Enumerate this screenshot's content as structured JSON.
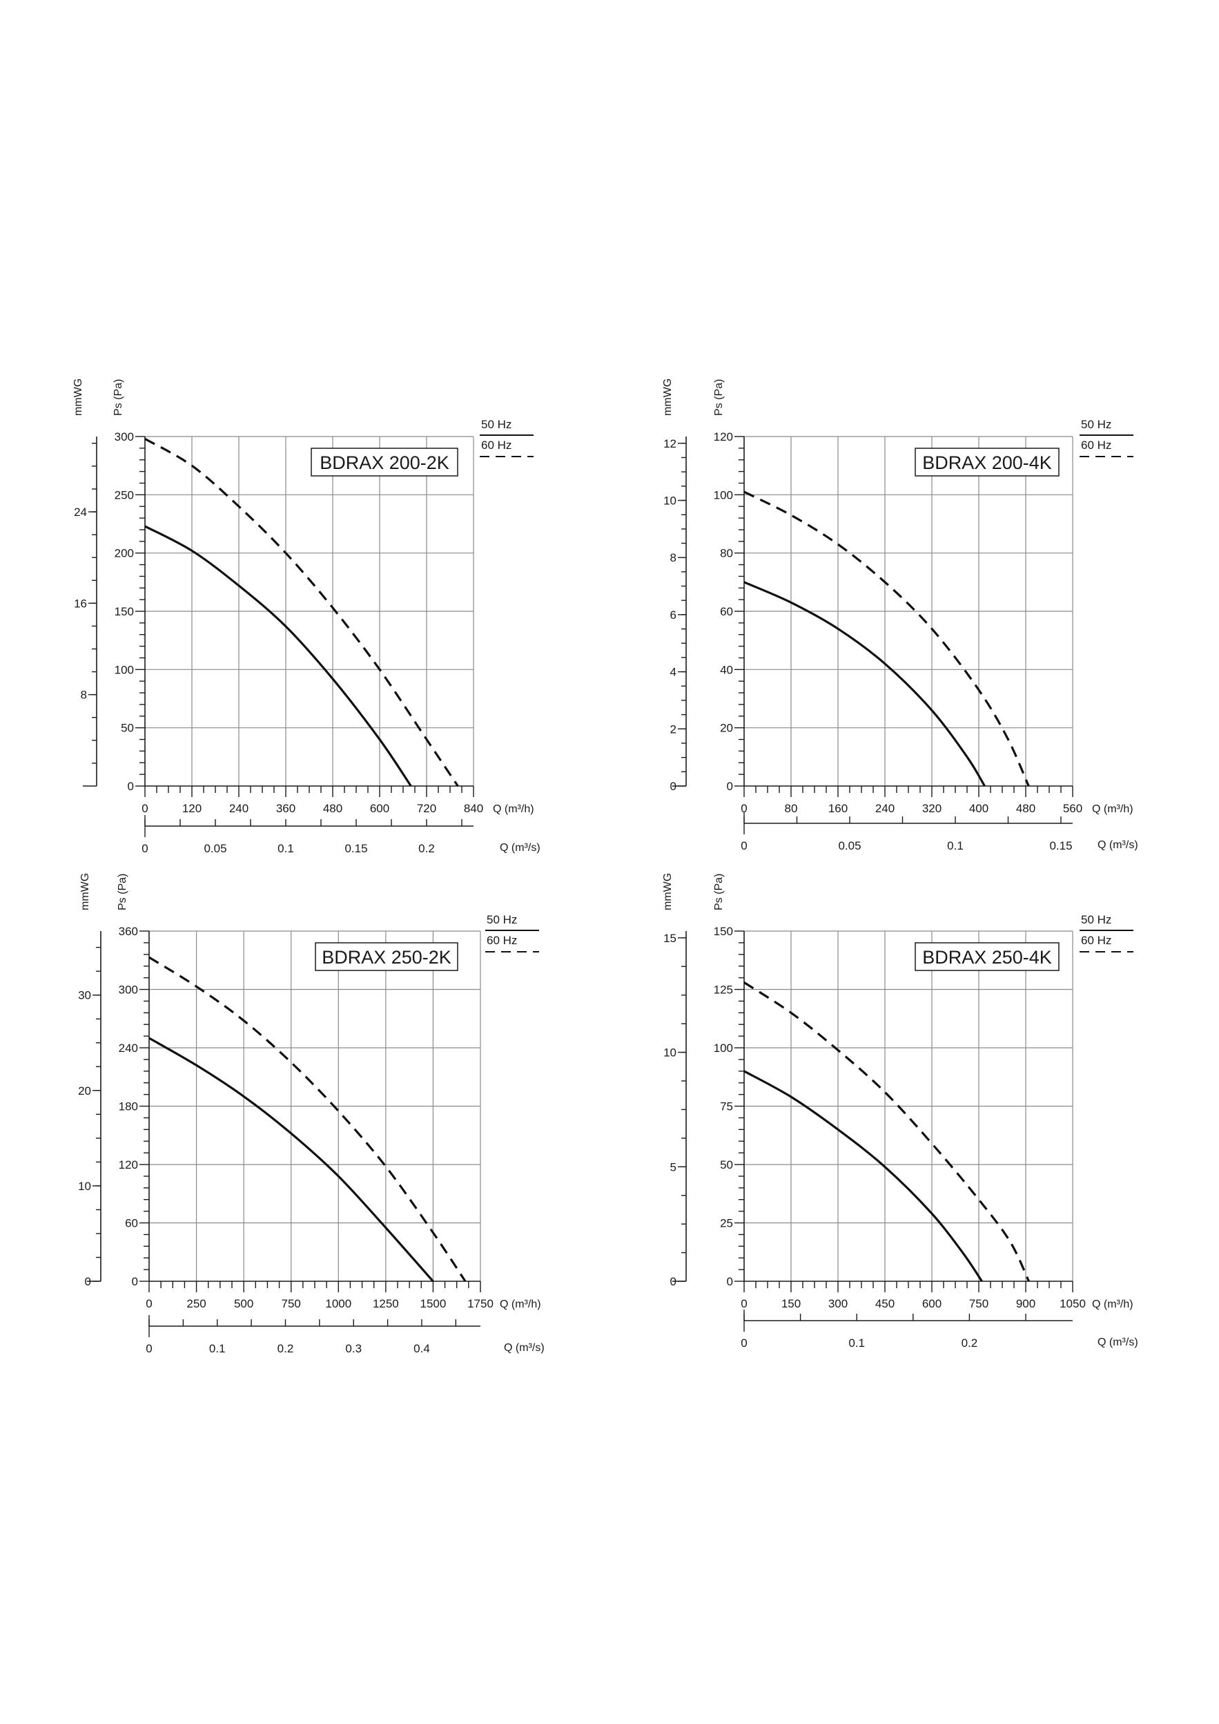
{
  "chart_data": [
    {
      "type": "line",
      "model_label": "BDRAX  200-2K",
      "legend": [
        "50 Hz",
        "60 Hz"
      ],
      "y1_title": "mmWG",
      "y2_title": "Ps (Pa)",
      "x_title": "Q (m³/h)",
      "x2_title": "Q (m³/s)",
      "xlim": [
        0,
        840
      ],
      "ylim": [
        0,
        300
      ],
      "x_ticks": [
        "0",
        "120",
        "240",
        "360",
        "480",
        "600",
        "720",
        "840"
      ],
      "y_ticks": [
        "0",
        "50",
        "100",
        "150",
        "200",
        "250",
        "300"
      ],
      "mm_ticks": [
        {
          "label": "8",
          "value": 8
        },
        {
          "label": "16",
          "value": 16
        },
        {
          "label": "24",
          "value": 24
        }
      ],
      "x2_ticks": [
        {
          "label": "0",
          "value": 0
        },
        {
          "label": "0.05",
          "value": 0.05
        },
        {
          "label": "0.1",
          "value": 0.1
        },
        {
          "label": "0.15",
          "value": 0.15
        },
        {
          "label": "0.2",
          "value": 0.2
        }
      ],
      "series": [
        {
          "name": "50 Hz",
          "x": [
            0,
            120,
            240,
            360,
            480,
            600,
            680
          ],
          "y": [
            223,
            202,
            172,
            137,
            92,
            40,
            0
          ]
        },
        {
          "name": "60 Hz",
          "x": [
            0,
            120,
            240,
            360,
            480,
            600,
            720,
            800
          ],
          "y": [
            298,
            275,
            240,
            200,
            153,
            100,
            40,
            0
          ]
        }
      ]
    },
    {
      "type": "line",
      "model_label": "BDRAX 200-4K",
      "legend": [
        "50 Hz",
        "60 Hz"
      ],
      "y1_title": "mmWG",
      "y2_title": "Ps (Pa)",
      "x_title": "Q (m³/h)",
      "x2_title": "Q (m³/s)",
      "xlim": [
        0,
        560
      ],
      "ylim": [
        0,
        120
      ],
      "x_ticks": [
        "0",
        "80",
        "160",
        "240",
        "320",
        "400",
        "480",
        "560"
      ],
      "y_ticks": [
        "0",
        "20",
        "40",
        "60",
        "80",
        "100",
        "120"
      ],
      "mm_ticks": [
        {
          "label": "0",
          "value": 0
        },
        {
          "label": "2",
          "value": 2
        },
        {
          "label": "4",
          "value": 4
        },
        {
          "label": "6",
          "value": 6
        },
        {
          "label": "8",
          "value": 8
        },
        {
          "label": "10",
          "value": 10
        },
        {
          "label": "12",
          "value": 12
        }
      ],
      "x2_ticks": [
        {
          "label": "0",
          "value": 0
        },
        {
          "label": "0.05",
          "value": 0.05
        },
        {
          "label": "0.1",
          "value": 0.1
        },
        {
          "label": "0.15",
          "value": 0.15
        }
      ],
      "series": [
        {
          "name": "50 Hz",
          "x": [
            0,
            80,
            160,
            240,
            320,
            380,
            410
          ],
          "y": [
            70,
            63,
            54,
            42,
            26,
            10,
            0
          ]
        },
        {
          "name": "60 Hz",
          "x": [
            0,
            80,
            160,
            240,
            320,
            400,
            450,
            485
          ],
          "y": [
            101,
            93,
            83,
            70,
            54,
            33,
            16,
            0
          ]
        }
      ]
    },
    {
      "type": "line",
      "model_label": "BDRAX 250-2K",
      "legend": [
        "50 Hz",
        "60 Hz"
      ],
      "y1_title": "mmWG",
      "y2_title": "Ps (Pa)",
      "x_title": "Q (m³/h)",
      "x2_title": "Q (m³/s)",
      "xlim": [
        0,
        1750
      ],
      "ylim": [
        0,
        360
      ],
      "x_ticks": [
        "0",
        "250",
        "500",
        "750",
        "1000",
        "1250",
        "1500",
        "1750"
      ],
      "y_ticks": [
        "0",
        "60",
        "120",
        "180",
        "240",
        "300",
        "360"
      ],
      "mm_ticks": [
        {
          "label": "0",
          "value": 0
        },
        {
          "label": "10",
          "value": 10
        },
        {
          "label": "20",
          "value": 20
        },
        {
          "label": "30",
          "value": 30
        }
      ],
      "x2_ticks": [
        {
          "label": "0",
          "value": 0
        },
        {
          "label": "0.1",
          "value": 0.1
        },
        {
          "label": "0.2",
          "value": 0.2
        },
        {
          "label": "0.3",
          "value": 0.3
        },
        {
          "label": "0.4",
          "value": 0.4
        }
      ],
      "series": [
        {
          "name": "50 Hz",
          "x": [
            0,
            250,
            500,
            750,
            1000,
            1250,
            1500
          ],
          "y": [
            250,
            222,
            190,
            152,
            108,
            55,
            0
          ]
        },
        {
          "name": "60 Hz",
          "x": [
            0,
            250,
            500,
            750,
            1000,
            1250,
            1500,
            1670
          ],
          "y": [
            333,
            303,
            268,
            225,
            175,
            118,
            50,
            0
          ]
        }
      ]
    },
    {
      "type": "line",
      "model_label": "BDRAX 250-4K",
      "legend": [
        "50 Hz",
        "60 Hz"
      ],
      "y1_title": "mmWG",
      "y2_title": "Ps (Pa)",
      "x_title": "Q (m³/h)",
      "x2_title": "Q (m³/s)",
      "xlim": [
        0,
        1050
      ],
      "ylim": [
        0,
        150
      ],
      "x_ticks": [
        "0",
        "150",
        "300",
        "450",
        "600",
        "750",
        "900",
        "1050"
      ],
      "y_ticks": [
        "0",
        "25",
        "50",
        "75",
        "100",
        "125",
        "150"
      ],
      "mm_ticks": [
        {
          "label": "0",
          "value": 0
        },
        {
          "label": "5",
          "value": 5
        },
        {
          "label": "10",
          "value": 10
        },
        {
          "label": "15",
          "value": 15
        }
      ],
      "x2_ticks": [
        {
          "label": "0",
          "value": 0
        },
        {
          "label": "0.1",
          "value": 0.1
        },
        {
          "label": "0.2",
          "value": 0.2
        }
      ],
      "series": [
        {
          "name": "50 Hz",
          "x": [
            0,
            150,
            300,
            450,
            600,
            700,
            760
          ],
          "y": [
            90,
            79,
            65,
            49,
            29,
            12,
            0
          ]
        },
        {
          "name": "60 Hz",
          "x": [
            0,
            150,
            300,
            450,
            600,
            750,
            850,
            910
          ],
          "y": [
            128,
            115,
            99,
            81,
            59,
            35,
            17,
            0
          ]
        }
      ]
    }
  ]
}
